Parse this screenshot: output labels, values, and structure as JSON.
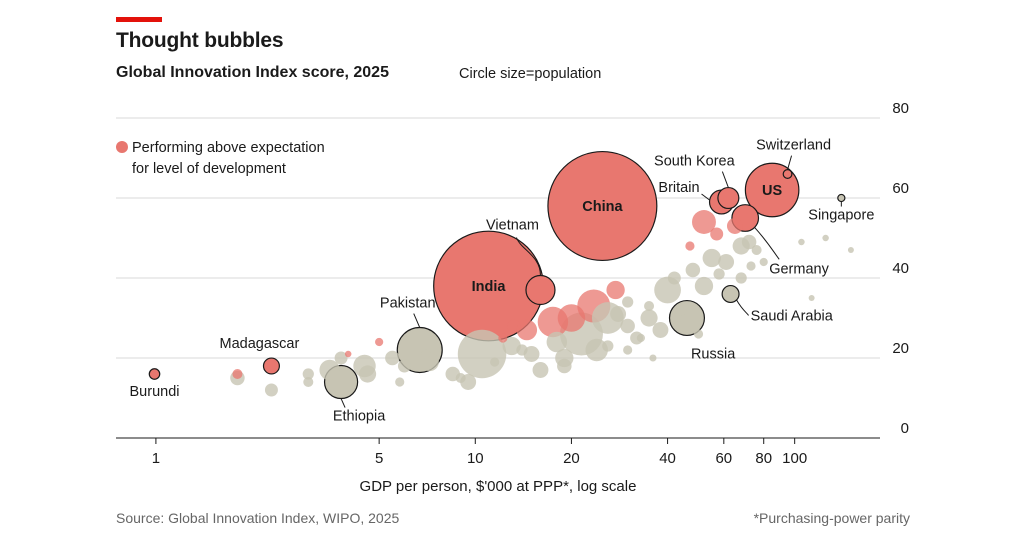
{
  "header": {
    "title": "Thought bubbles",
    "subtitle": "Global Innovation Index score, 2025",
    "size_note": "Circle size=population"
  },
  "footer": {
    "source": "Source: Global Innovation Index, WIPO, 2025",
    "footnote": "*Purchasing-power parity"
  },
  "colors": {
    "accent": "#e3120b",
    "above": "#e8776f",
    "other": "#c7c4b3",
    "stroke": "#1a1a1a",
    "grid": "#d9d9d9"
  },
  "chart_data": {
    "type": "scatter",
    "title": "Global Innovation Index score, 2025",
    "xlabel": "GDP per person, $'000 at PPP*, log scale",
    "ylabel": "",
    "xscale": "log",
    "xlim": [
      0.75,
      185
    ],
    "ylim": [
      0,
      80
    ],
    "xticks": [
      1,
      5,
      10,
      20,
      40,
      60,
      80,
      100
    ],
    "xtick_labels": [
      "1",
      "5",
      "10",
      "20",
      "40",
      "60",
      "80",
      "100"
    ],
    "yticks": [
      0,
      20,
      40,
      60,
      80
    ],
    "ytick_labels": [
      "0",
      "20",
      "40",
      "60",
      "80"
    ],
    "grid": true,
    "legend": {
      "placement": "top-left",
      "label": "Performing above expectation for level of development"
    },
    "size_encoding": "population",
    "series": [
      {
        "name": "Performing above expectation for level of development",
        "points": [
          {
            "x": 25.0,
            "y": 58,
            "size": 1410,
            "label": "China",
            "label_pos": "inside"
          },
          {
            "x": 11.0,
            "y": 38,
            "size": 1430,
            "label": "India",
            "label_pos": "inside"
          },
          {
            "x": 85,
            "y": 62,
            "size": 340,
            "label": "US",
            "label_pos": "inside"
          },
          {
            "x": 16.0,
            "y": 37,
            "size": 100,
            "label": "Vietnam",
            "label_pos": "above"
          },
          {
            "x": 62,
            "y": 60,
            "size": 52,
            "label": "South Korea",
            "label_pos": "above"
          },
          {
            "x": 95,
            "y": 66,
            "size": 9,
            "label": "Switzerland",
            "label_pos": "above"
          },
          {
            "x": 59,
            "y": 59,
            "size": 68,
            "label": "Britain",
            "label_pos": "left"
          },
          {
            "x": 70,
            "y": 55,
            "size": 84,
            "label": "Germany",
            "label_pos": "below-right"
          },
          {
            "x": 2.3,
            "y": 18,
            "size": 30,
            "label": "Madagascar",
            "label_pos": "above"
          },
          {
            "x": 0.99,
            "y": 16,
            "size": 13,
            "label": "Burundi",
            "label_pos": "below"
          },
          {
            "x": 52,
            "y": 54,
            "size": 68
          },
          {
            "x": 57,
            "y": 51,
            "size": 20
          },
          {
            "x": 65,
            "y": 53,
            "size": 30
          },
          {
            "x": 47,
            "y": 48,
            "size": 10
          },
          {
            "x": 23.5,
            "y": 33,
            "size": 130
          },
          {
            "x": 20.0,
            "y": 30,
            "size": 90
          },
          {
            "x": 27.5,
            "y": 37,
            "size": 40
          },
          {
            "x": 17.5,
            "y": 29,
            "size": 110
          },
          {
            "x": 14.5,
            "y": 27,
            "size": 50
          },
          {
            "x": 13.2,
            "y": 28,
            "size": 20
          },
          {
            "x": 12.2,
            "y": 25,
            "size": 10
          },
          {
            "x": 4.0,
            "y": 21,
            "size": 5
          },
          {
            "x": 5.0,
            "y": 24,
            "size": 8
          },
          {
            "x": 1.8,
            "y": 16,
            "size": 12
          }
        ]
      },
      {
        "name": "",
        "points": [
          {
            "x": 6.7,
            "y": 22,
            "size": 240,
            "label": "Pakistan",
            "label_pos": "above"
          },
          {
            "x": 3.8,
            "y": 14,
            "size": 130,
            "label": "Ethiopia",
            "label_pos": "below"
          },
          {
            "x": 46,
            "y": 30,
            "size": 145,
            "label": "Russia",
            "label_pos": "below-right"
          },
          {
            "x": 63,
            "y": 36,
            "size": 34,
            "label": "Saudi Arabia",
            "label_pos": "below-right"
          },
          {
            "x": 140,
            "y": 60,
            "size": 6,
            "label": "Singapore",
            "label_pos": "below"
          },
          {
            "x": 10.5,
            "y": 21,
            "size": 280
          },
          {
            "x": 21.5,
            "y": 26,
            "size": 220
          },
          {
            "x": 26.0,
            "y": 30,
            "size": 120
          },
          {
            "x": 18.0,
            "y": 24,
            "size": 50
          },
          {
            "x": 24.0,
            "y": 22,
            "size": 60
          },
          {
            "x": 40,
            "y": 37,
            "size": 85
          },
          {
            "x": 52,
            "y": 38,
            "size": 40
          },
          {
            "x": 35,
            "y": 30,
            "size": 35
          },
          {
            "x": 38,
            "y": 27,
            "size": 30
          },
          {
            "x": 30,
            "y": 28,
            "size": 25
          },
          {
            "x": 32,
            "y": 25,
            "size": 20
          },
          {
            "x": 28,
            "y": 31,
            "size": 30
          },
          {
            "x": 42,
            "y": 40,
            "size": 20
          },
          {
            "x": 48,
            "y": 42,
            "size": 25
          },
          {
            "x": 55,
            "y": 45,
            "size": 40
          },
          {
            "x": 61,
            "y": 44,
            "size": 30
          },
          {
            "x": 68,
            "y": 48,
            "size": 35
          },
          {
            "x": 72,
            "y": 49,
            "size": 25
          },
          {
            "x": 58,
            "y": 41,
            "size": 15
          },
          {
            "x": 76,
            "y": 47,
            "size": 12
          },
          {
            "x": 80,
            "y": 44,
            "size": 8
          },
          {
            "x": 105,
            "y": 49,
            "size": 5
          },
          {
            "x": 125,
            "y": 50,
            "size": 5
          },
          {
            "x": 113,
            "y": 35,
            "size": 3
          },
          {
            "x": 150,
            "y": 47,
            "size": 2
          },
          {
            "x": 7.2,
            "y": 19,
            "size": 40
          },
          {
            "x": 8.5,
            "y": 16,
            "size": 25
          },
          {
            "x": 9.5,
            "y": 14,
            "size": 30
          },
          {
            "x": 6.0,
            "y": 18,
            "size": 20
          },
          {
            "x": 4.5,
            "y": 18,
            "size": 60
          },
          {
            "x": 4.6,
            "y": 16,
            "size": 35
          },
          {
            "x": 5.5,
            "y": 20,
            "size": 25
          },
          {
            "x": 3.5,
            "y": 17,
            "size": 50
          },
          {
            "x": 3.0,
            "y": 16,
            "size": 15
          },
          {
            "x": 3.0,
            "y": 14,
            "size": 12
          },
          {
            "x": 3.8,
            "y": 20,
            "size": 20
          },
          {
            "x": 2.3,
            "y": 12,
            "size": 20
          },
          {
            "x": 1.8,
            "y": 15,
            "size": 25
          },
          {
            "x": 5.8,
            "y": 14,
            "size": 10
          },
          {
            "x": 13.0,
            "y": 23,
            "size": 40
          },
          {
            "x": 15.0,
            "y": 21,
            "size": 30
          },
          {
            "x": 16.0,
            "y": 17,
            "size": 30
          },
          {
            "x": 19.0,
            "y": 20,
            "size": 40
          },
          {
            "x": 19.0,
            "y": 18,
            "size": 25
          },
          {
            "x": 14.0,
            "y": 22,
            "size": 15
          },
          {
            "x": 9.0,
            "y": 15,
            "size": 12
          },
          {
            "x": 26.0,
            "y": 23,
            "size": 15
          },
          {
            "x": 30,
            "y": 22,
            "size": 10
          },
          {
            "x": 33,
            "y": 25,
            "size": 8
          },
          {
            "x": 36,
            "y": 20,
            "size": 6
          },
          {
            "x": 35,
            "y": 33,
            "size": 12
          },
          {
            "x": 30,
            "y": 34,
            "size": 15
          },
          {
            "x": 11.5,
            "y": 19,
            "size": 10
          },
          {
            "x": 7.0,
            "y": 21,
            "size": 10
          },
          {
            "x": 44,
            "y": 32,
            "size": 15
          },
          {
            "x": 50,
            "y": 26,
            "size": 10
          },
          {
            "x": 68,
            "y": 40,
            "size": 15
          },
          {
            "x": 73,
            "y": 43,
            "size": 10
          }
        ]
      }
    ]
  }
}
